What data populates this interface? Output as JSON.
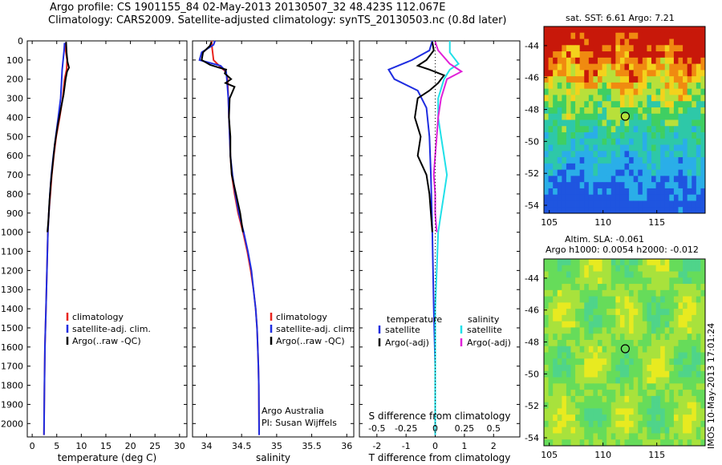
{
  "header": {
    "line1": "Argo profile: CS 1901155_84 02-May-2013 20130507_32 48.423S 112.067E",
    "line2": "Climatology: CARS2009. Satellite-adjusted climatology: synTS_20130503.nc (0.8d later)"
  },
  "depth_ticks": [
    0,
    100,
    200,
    300,
    400,
    500,
    600,
    700,
    800,
    900,
    1000,
    1100,
    1200,
    1300,
    1400,
    1500,
    1600,
    1700,
    1800,
    1900,
    2000
  ],
  "colors": {
    "climatology": "#e8251e",
    "satellite": "#1f2de0",
    "argo": "#000000",
    "satellite_salinity": "#20e0e8",
    "argo_salinity": "#e020d8"
  },
  "chart_data": [
    {
      "id": "temperature",
      "type": "line",
      "xlabel": "temperature (deg C)",
      "ylabel": "",
      "xlim": [
        -1,
        31.5
      ],
      "ylim": [
        2070,
        0
      ],
      "xticks": [
        0,
        5,
        10,
        15,
        20,
        25,
        30
      ],
      "legend_placement": "lower-center",
      "legend": [
        "climatology",
        "satellite-adj. clim.",
        "Argo(..raw -QC)"
      ],
      "series": [
        {
          "name": "climatology",
          "color": "climatology",
          "points": [
            [
              6.8,
              10
            ],
            [
              6.8,
              50
            ],
            [
              7.1,
              100
            ],
            [
              7.0,
              150
            ],
            [
              6.6,
              200
            ],
            [
              6.2,
              300
            ],
            [
              5.6,
              400
            ],
            [
              4.9,
              500
            ],
            [
              4.4,
              600
            ],
            [
              4.0,
              700
            ],
            [
              3.7,
              800
            ],
            [
              3.4,
              900
            ],
            [
              3.2,
              1000
            ],
            [
              3.0,
              1200
            ],
            [
              2.8,
              1400
            ],
            [
              2.6,
              1600
            ],
            [
              2.5,
              1800
            ],
            [
              2.4,
              2060
            ]
          ]
        },
        {
          "name": "satellite-adj. clim.",
          "color": "satellite",
          "points": [
            [
              6.6,
              10
            ],
            [
              6.5,
              50
            ],
            [
              6.3,
              100
            ],
            [
              6.1,
              150
            ],
            [
              6.0,
              200
            ],
            [
              5.8,
              300
            ],
            [
              5.3,
              400
            ],
            [
              4.8,
              500
            ],
            [
              4.3,
              600
            ],
            [
              3.9,
              700
            ],
            [
              3.6,
              800
            ],
            [
              3.4,
              900
            ],
            [
              3.2,
              1000
            ],
            [
              3.0,
              1200
            ],
            [
              2.8,
              1400
            ],
            [
              2.6,
              1600
            ],
            [
              2.5,
              1800
            ],
            [
              2.4,
              2060
            ]
          ]
        },
        {
          "name": "Argo(..raw -QC)",
          "color": "argo",
          "points": [
            [
              6.9,
              5
            ],
            [
              7.0,
              60
            ],
            [
              7.2,
              110
            ],
            [
              7.5,
              140
            ],
            [
              7.1,
              160
            ],
            [
              6.8,
              200
            ],
            [
              6.4,
              280
            ],
            [
              5.8,
              360
            ],
            [
              5.2,
              440
            ],
            [
              4.6,
              540
            ],
            [
              4.2,
              640
            ],
            [
              3.8,
              740
            ],
            [
              3.5,
              840
            ],
            [
              3.3,
              940
            ],
            [
              3.1,
              1000
            ]
          ]
        }
      ]
    },
    {
      "id": "salinity",
      "type": "line",
      "xlabel": "salinity",
      "ylabel": "",
      "xlim": [
        33.8,
        36.1
      ],
      "ylim": [
        2070,
        0
      ],
      "xticks": [
        34,
        34.5,
        35,
        35.5,
        36
      ],
      "legend_placement": "lower-center",
      "legend": [
        "climatology",
        "satellite-adj. clim.",
        "Argo(..raw -QC)"
      ],
      "annotation": [
        "Argo Australia",
        "PI: Susan Wijffels"
      ],
      "series": [
        {
          "name": "climatology",
          "color": "climatology",
          "points": [
            [
              34.07,
              0
            ],
            [
              34.08,
              40
            ],
            [
              34.1,
              100
            ],
            [
              34.18,
              130
            ],
            [
              34.27,
              160
            ],
            [
              34.3,
              200
            ],
            [
              34.31,
              300
            ],
            [
              34.32,
              400
            ],
            [
              34.33,
              500
            ],
            [
              34.34,
              600
            ],
            [
              34.36,
              700
            ],
            [
              34.4,
              800
            ],
            [
              34.45,
              900
            ],
            [
              34.52,
              1000
            ],
            [
              34.58,
              1100
            ],
            [
              34.63,
              1200
            ],
            [
              34.67,
              1300
            ],
            [
              34.7,
              1400
            ],
            [
              34.72,
              1500
            ],
            [
              34.73,
              1600
            ],
            [
              34.74,
              1700
            ],
            [
              34.745,
              1800
            ],
            [
              34.75,
              2060
            ]
          ]
        },
        {
          "name": "satellite-adj. clim.",
          "color": "satellite",
          "points": [
            [
              34.12,
              0
            ],
            [
              34.1,
              20
            ],
            [
              33.93,
              60
            ],
            [
              33.9,
              100
            ],
            [
              34.1,
              120
            ],
            [
              34.2,
              130
            ],
            [
              34.28,
              160
            ],
            [
              34.29,
              200
            ],
            [
              34.31,
              300
            ],
            [
              34.32,
              400
            ],
            [
              34.33,
              500
            ],
            [
              34.34,
              600
            ],
            [
              34.37,
              700
            ],
            [
              34.41,
              800
            ],
            [
              34.46,
              900
            ],
            [
              34.53,
              1000
            ],
            [
              34.59,
              1100
            ],
            [
              34.64,
              1200
            ],
            [
              34.67,
              1300
            ],
            [
              34.7,
              1400
            ],
            [
              34.72,
              1500
            ],
            [
              34.73,
              1600
            ],
            [
              34.74,
              1700
            ],
            [
              34.745,
              1800
            ],
            [
              34.75,
              2060
            ]
          ]
        },
        {
          "name": "Argo(..raw -QC)",
          "color": "argo",
          "points": [
            [
              34.07,
              5
            ],
            [
              34.05,
              25
            ],
            [
              33.95,
              60
            ],
            [
              33.93,
              100
            ],
            [
              34.05,
              125
            ],
            [
              34.18,
              140
            ],
            [
              34.28,
              150
            ],
            [
              34.26,
              170
            ],
            [
              34.35,
              200
            ],
            [
              34.27,
              220
            ],
            [
              34.4,
              240
            ],
            [
              34.33,
              300
            ],
            [
              34.32,
              400
            ],
            [
              34.34,
              500
            ],
            [
              34.34,
              600
            ],
            [
              34.36,
              700
            ],
            [
              34.42,
              800
            ],
            [
              34.48,
              900
            ],
            [
              34.52,
              1000
            ]
          ]
        }
      ]
    },
    {
      "id": "difference",
      "type": "line",
      "xlabel": "T difference from climatology",
      "xlabel_top": "S difference from climatology",
      "ylabel": "",
      "xlim": [
        -2.6,
        2.9
      ],
      "ylim": [
        2070,
        0
      ],
      "xticks": [
        -2,
        -1,
        0,
        1,
        2
      ],
      "xticks_top": [
        "-0.5",
        "-0.25",
        "0",
        "0.25",
        "0.5"
      ],
      "xticks_top_values": [
        -2,
        -1,
        0,
        1,
        2
      ],
      "legend_placement": "lower-center",
      "legend_temperature_title": "temperature",
      "legend_salinity_title": "salinity",
      "legend": [
        "satellite",
        "Argo(-adj)",
        "satellite",
        "Argo(-adj)"
      ],
      "series": [
        {
          "name": "satellite",
          "color": "satellite",
          "points": [
            [
              -0.1,
              0
            ],
            [
              -0.2,
              50
            ],
            [
              -0.8,
              100
            ],
            [
              -1.6,
              150
            ],
            [
              -1.4,
              200
            ],
            [
              -0.6,
              260
            ],
            [
              -0.3,
              350
            ],
            [
              -0.2,
              500
            ],
            [
              -0.15,
              700
            ],
            [
              -0.1,
              1000
            ],
            [
              -0.05,
              1400
            ],
            [
              0,
              1700
            ],
            [
              0,
              2060
            ]
          ]
        },
        {
          "name": "Argo(-adj)",
          "color": "argo",
          "points": [
            [
              -0.1,
              5
            ],
            [
              -0.05,
              50
            ],
            [
              -0.3,
              100
            ],
            [
              -0.6,
              130
            ],
            [
              -0.2,
              150
            ],
            [
              0.3,
              180
            ],
            [
              0.1,
              220
            ],
            [
              -0.2,
              260
            ],
            [
              -0.6,
              300
            ],
            [
              -0.7,
              400
            ],
            [
              -0.5,
              500
            ],
            [
              -0.6,
              600
            ],
            [
              -0.3,
              700
            ],
            [
              -0.2,
              800
            ],
            [
              -0.15,
              900
            ],
            [
              -0.1,
              1000
            ]
          ]
        },
        {
          "name": "satellite (salinity)",
          "color": "satellite_salinity",
          "points": [
            [
              0.5,
              0
            ],
            [
              0.5,
              60
            ],
            [
              0.8,
              120
            ],
            [
              0.5,
              150
            ],
            [
              0.3,
              200
            ],
            [
              0.1,
              300
            ],
            [
              0.1,
              400
            ],
            [
              0.2,
              500
            ],
            [
              0.3,
              600
            ],
            [
              0.4,
              700
            ],
            [
              0.3,
              800
            ],
            [
              0.2,
              900
            ],
            [
              0.1,
              1000
            ],
            [
              0.05,
              1200
            ],
            [
              0,
              1400
            ],
            [
              0,
              1600
            ],
            [
              0,
              2060
            ]
          ]
        },
        {
          "name": "Argo(-adj) (salinity)",
          "color": "argo_salinity",
          "points": [
            [
              0.0,
              5
            ],
            [
              0.1,
              50
            ],
            [
              0.5,
              120
            ],
            [
              0.9,
              160
            ],
            [
              0.4,
              200
            ],
            [
              0.2,
              300
            ],
            [
              0.1,
              400
            ],
            [
              0.05,
              500
            ],
            [
              0.0,
              600
            ],
            [
              -0.05,
              700
            ],
            [
              0.0,
              800
            ],
            [
              0.0,
              900
            ],
            [
              0.05,
              1000
            ]
          ]
        }
      ]
    },
    {
      "id": "sst_map",
      "type": "heatmap",
      "title": "sat. SST: 6.61  Argo: 7.21",
      "xlim": [
        104.5,
        119.5
      ],
      "ylim": [
        -54.5,
        -42.8
      ],
      "xticks": [
        105,
        110,
        115
      ],
      "yticks": [
        -44,
        -46,
        -48,
        -50,
        -52,
        -54
      ],
      "marker": [
        112.067,
        -48.423
      ]
    },
    {
      "id": "sla_map",
      "type": "heatmap",
      "title_line1": "Altim. SLA: -0.061",
      "title_line2": "Argo h1000: 0.0054 h2000: -0.012",
      "xlim": [
        104.5,
        119.5
      ],
      "ylim": [
        -54.5,
        -42.8
      ],
      "xticks": [
        105,
        110,
        115
      ],
      "yticks": [
        -44,
        -46,
        -48,
        -50,
        -52,
        -54
      ],
      "marker": [
        112.067,
        -48.423
      ]
    }
  ],
  "side_text": "IMOS 10-May-2013 17:01:24"
}
